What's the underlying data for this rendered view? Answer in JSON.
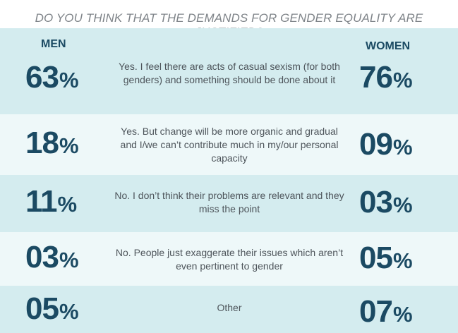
{
  "title": "DO YOU THINK THAT THE DEMANDS FOR GENDER EQUALITY ARE JUSTIFIED?",
  "men_label": "MEN",
  "women_label": "WOMEN",
  "colors": {
    "row_teal": "#d4ecef",
    "row_light": "#eef8f9",
    "number": "#1b4a63",
    "text": "#4e555b",
    "title": "#7f8489"
  },
  "rows": [
    {
      "men": "63",
      "women": "76",
      "text": "Yes. I feel there are acts of casual sexism (for both genders) and something should be done about it"
    },
    {
      "men": "18",
      "women": "09",
      "text": "Yes. But change will be more organic and gradual and I/we can’t contribute much in my/our personal capacity"
    },
    {
      "men": "11",
      "women": "03",
      "text": "No. I don’t think their problems are relevant and they miss the point"
    },
    {
      "men": "03",
      "women": "05",
      "text": "No. People just exaggerate their issues which aren’t even pertinent to gender"
    },
    {
      "men": "05",
      "women": "07",
      "text": "Other"
    }
  ],
  "percent_sign": "%",
  "chart_data": {
    "type": "table",
    "title": "DO YOU THINK THAT THE DEMANDS FOR GENDER EQUALITY ARE JUSTIFIED?",
    "columns": [
      "MEN",
      "WOMEN"
    ],
    "categories": [
      "Yes. I feel there are acts of casual sexism (for both genders) and something should be done about it",
      "Yes. But change will be more organic and gradual and I/we can’t contribute much in my/our personal capacity",
      "No. I don’t think their problems are relevant and they miss the point",
      "No. People just exaggerate their issues which aren’t even pertinent to gender",
      "Other"
    ],
    "series": [
      {
        "name": "MEN",
        "values": [
          63,
          18,
          11,
          3,
          5
        ]
      },
      {
        "name": "WOMEN",
        "values": [
          76,
          9,
          3,
          5,
          7
        ]
      }
    ]
  }
}
